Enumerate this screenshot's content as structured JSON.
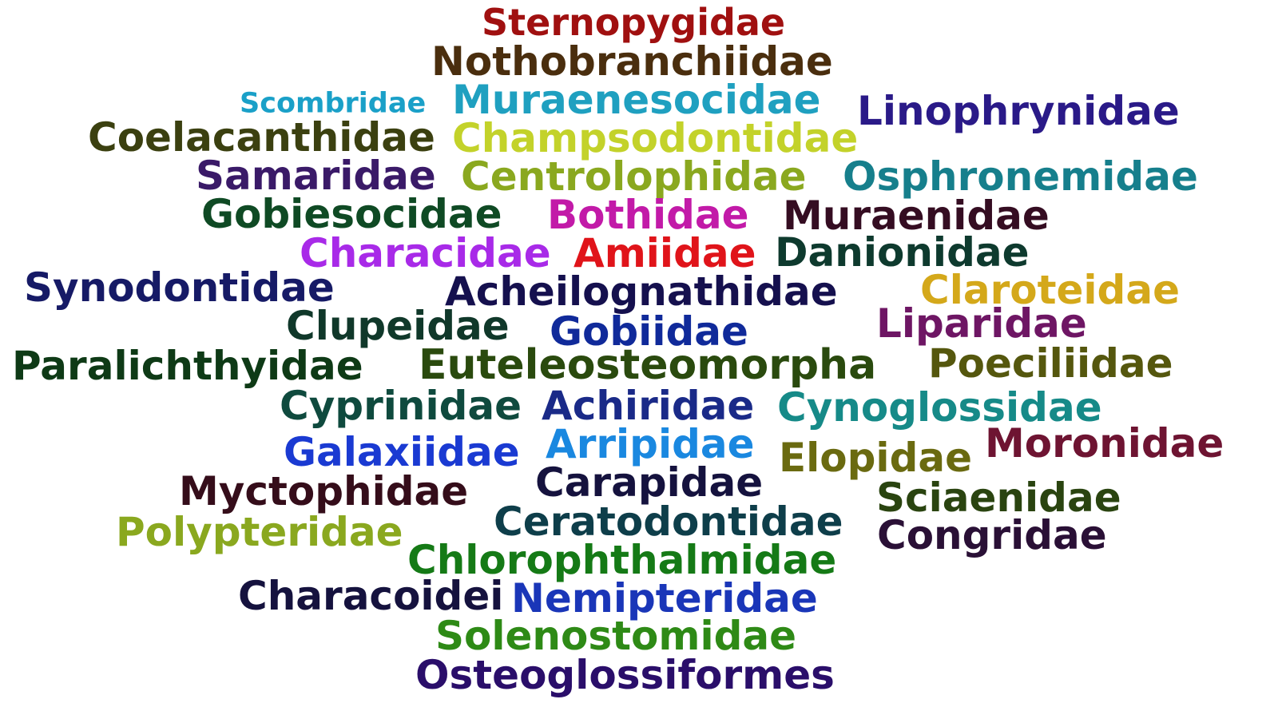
{
  "words": [
    {
      "text": "Sternopygidae",
      "color": "#a01010"
    },
    {
      "text": "Nothobranchiidae",
      "color": "#4a2e0e"
    },
    {
      "text": "Scombridae",
      "color": "#1aa0c8"
    },
    {
      "text": "Muraenesocidae",
      "color": "#1fa0c0"
    },
    {
      "text": "Linophrynidae",
      "color": "#2a1a88"
    },
    {
      "text": "Coelacanthidae",
      "color": "#3b4010"
    },
    {
      "text": "Champsodontidae",
      "color": "#c3d22a"
    },
    {
      "text": "Samaridae",
      "color": "#3a1a68"
    },
    {
      "text": "Centrolophidae",
      "color": "#8aa81f"
    },
    {
      "text": "Osphronemidae",
      "color": "#167f8c"
    },
    {
      "text": "Gobiesocidae",
      "color": "#0f4a24"
    },
    {
      "text": "Bothidae",
      "color": "#c21aa8"
    },
    {
      "text": "Muraenidae",
      "color": "#350d22"
    },
    {
      "text": "Characidae",
      "color": "#a82ae8"
    },
    {
      "text": "Amiidae",
      "color": "#e0141a"
    },
    {
      "text": "Danionidae",
      "color": "#0e3a2e"
    },
    {
      "text": "Synodontidae",
      "color": "#161a66"
    },
    {
      "text": "Acheilognathidae",
      "color": "#15104e"
    },
    {
      "text": "Claroteidae",
      "color": "#d4a81a"
    },
    {
      "text": "Clupeidae",
      "color": "#10382a"
    },
    {
      "text": "Gobiidae",
      "color": "#102a9a"
    },
    {
      "text": "Liparidae",
      "color": "#6e1664"
    },
    {
      "text": "Paralichthyidae",
      "color": "#0e3a16"
    },
    {
      "text": "Euteleosteomorpha",
      "color": "#2a4a0e"
    },
    {
      "text": "Poeciliidae",
      "color": "#55570e"
    },
    {
      "text": "Cyprinidae",
      "color": "#0f4a3e"
    },
    {
      "text": "Achiridae",
      "color": "#1a2a88"
    },
    {
      "text": "Cynoglossidae",
      "color": "#168a88"
    },
    {
      "text": "Galaxiidae",
      "color": "#1a3ad2"
    },
    {
      "text": "Arripidae",
      "color": "#1a88e0"
    },
    {
      "text": "Elopidae",
      "color": "#6a6a10"
    },
    {
      "text": "Moronidae",
      "color": "#6e1432"
    },
    {
      "text": "Myctophidae",
      "color": "#350d1a"
    },
    {
      "text": "Carapidae",
      "color": "#15123e"
    },
    {
      "text": "Sciaenidae",
      "color": "#2a4410"
    },
    {
      "text": "Polypteridae",
      "color": "#8aa81f"
    },
    {
      "text": "Ceratodontidae",
      "color": "#0e3e4a"
    },
    {
      "text": "Congridae",
      "color": "#2a1036"
    },
    {
      "text": "Chlorophthalmidae",
      "color": "#157a16"
    },
    {
      "text": "Characoidei",
      "color": "#15123e"
    },
    {
      "text": "Nemipteridae",
      "color": "#1a36b8"
    },
    {
      "text": "Solenostomidae",
      "color": "#2e8a16"
    },
    {
      "text": "Osteoglossiformes",
      "color": "#2a0e6a"
    }
  ]
}
